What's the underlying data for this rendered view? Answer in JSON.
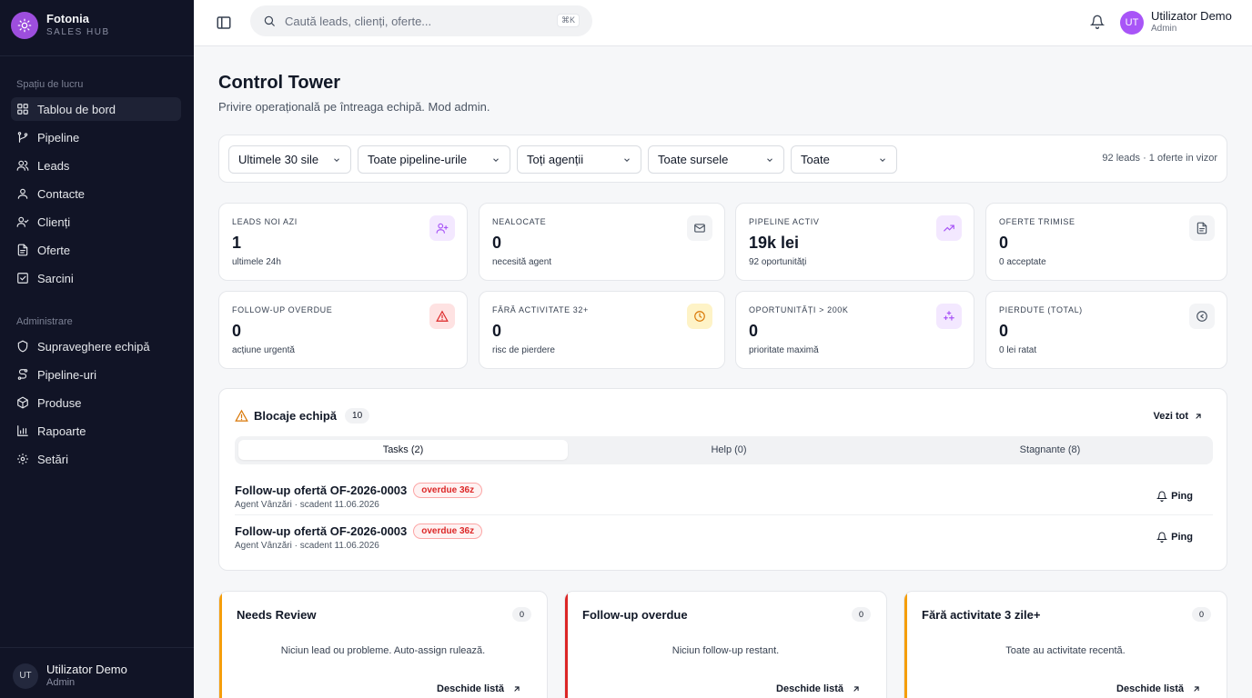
{
  "brand": {
    "name": "Fotonia",
    "subtitle": "SALES HUB",
    "logo_color": "#9d4edd"
  },
  "sidebar": {
    "workspace_label": "Spațiu de lucru",
    "workspace_items": [
      {
        "label": "Tablou de bord",
        "icon": "dashboard-icon",
        "active": true
      },
      {
        "label": "Pipeline",
        "icon": "git-branch-icon"
      },
      {
        "label": "Leads",
        "icon": "users-icon"
      },
      {
        "label": "Contacte",
        "icon": "contact-icon"
      },
      {
        "label": "Clienți",
        "icon": "user-check-icon"
      },
      {
        "label": "Oferte",
        "icon": "file-icon"
      },
      {
        "label": "Sarcini",
        "icon": "checkbox-icon"
      }
    ],
    "admin_label": "Administrare",
    "admin_items": [
      {
        "label": "Supraveghere echipă",
        "icon": "shield-icon"
      },
      {
        "label": "Pipeline-uri",
        "icon": "route-icon"
      },
      {
        "label": "Produse",
        "icon": "package-icon"
      },
      {
        "label": "Rapoarte",
        "icon": "bar-chart-icon"
      },
      {
        "label": "Setări",
        "icon": "gear-icon"
      }
    ],
    "user": {
      "initials": "UT",
      "name": "Utilizator Demo",
      "role": "Admin"
    }
  },
  "topbar": {
    "search_placeholder": "Caută leads, clienți, oferte...",
    "shortcut": "⌘K",
    "user": {
      "initials": "UT",
      "name": "Utilizator Demo",
      "role": "Admin"
    }
  },
  "page": {
    "title": "Control Tower",
    "subtitle": "Privire operațională pe întreaga echipă. Mod admin."
  },
  "filters": {
    "period": "Ultimele 30 sile",
    "pipeline": "Toate pipeline-urile",
    "agents": "Toți agenții",
    "sources": "Toate sursele",
    "status": "Toate",
    "summary": "92 leads · 1 oferte in vizor"
  },
  "kpis": [
    {
      "label": "LEADS NOI AZI",
      "value": "1",
      "note": "ultimele 24h",
      "icon": "user-plus-icon",
      "bg": "#f3e8ff",
      "fg": "#a855f7"
    },
    {
      "label": "NEALOCATE",
      "value": "0",
      "note": "necesită agent",
      "icon": "inbox-icon",
      "bg": "#f3f4f6",
      "fg": "#4b5563"
    },
    {
      "label": "PIPELINE ACTIV",
      "value": "19k lei",
      "note": "92 oportunități",
      "icon": "trending-up-icon",
      "bg": "#f3e8ff",
      "fg": "#a855f7"
    },
    {
      "label": "OFERTE TRIMISE",
      "value": "0",
      "note": "0 acceptate",
      "icon": "document-icon",
      "bg": "#f3f4f6",
      "fg": "#4b5563"
    },
    {
      "label": "FOLLOW-UP OVERDUE",
      "value": "0",
      "note": "acțiune urgentă",
      "icon": "alert-triangle-icon",
      "bg": "#fee2e2",
      "fg": "#dc2626"
    },
    {
      "label": "FĂRĂ ACTIVITATE 32+",
      "value": "0",
      "note": "risc de pierdere",
      "icon": "clock-icon",
      "bg": "#fef3c7",
      "fg": "#d97706"
    },
    {
      "label": "OPORTUNITĂȚI > 200K",
      "value": "0",
      "note": "prioritate maximă",
      "icon": "sparkles-icon",
      "bg": "#f3e8ff",
      "fg": "#a855f7"
    },
    {
      "label": "PIERDUTE (TOTAL)",
      "value": "0",
      "note": "0 lei ratat",
      "icon": "x-circle-icon",
      "bg": "#f3f4f6",
      "fg": "#4b5563"
    }
  ],
  "blocks": {
    "title": "Blocaje echipă",
    "count": "10",
    "see_all": "Vezi tot",
    "tabs": [
      "Tasks (2)",
      "Help (0)",
      "Stagnante (8)"
    ],
    "active_tab": 0,
    "rows": [
      {
        "title": "Follow-up ofertă OF-2026-0003",
        "badge": "overdue 36z",
        "sub": "Agent Vânzări · scadent 11.06.2026",
        "action": "Ping"
      },
      {
        "title": "Follow-up ofertă OF-2026-0003",
        "badge": "overdue 36z",
        "sub": "Agent Vânzări · scadent 11.06.2026",
        "action": "Ping"
      }
    ]
  },
  "queues": [
    {
      "title": "Needs Review",
      "count": "0",
      "empty": "Niciun lead ou probleme. Auto-assign rulează.",
      "link": "Deschide listă",
      "accent": "#f59e0b"
    },
    {
      "title": "Follow-up overdue",
      "count": "0",
      "empty": "Niciun follow-up restant.",
      "link": "Deschide listă",
      "accent": "#dc2626"
    },
    {
      "title": "Fără activitate 3 zile+",
      "count": "0",
      "empty": "Toate au activitate recentă.",
      "link": "Deschide listă",
      "accent": "#f59e0b"
    }
  ]
}
